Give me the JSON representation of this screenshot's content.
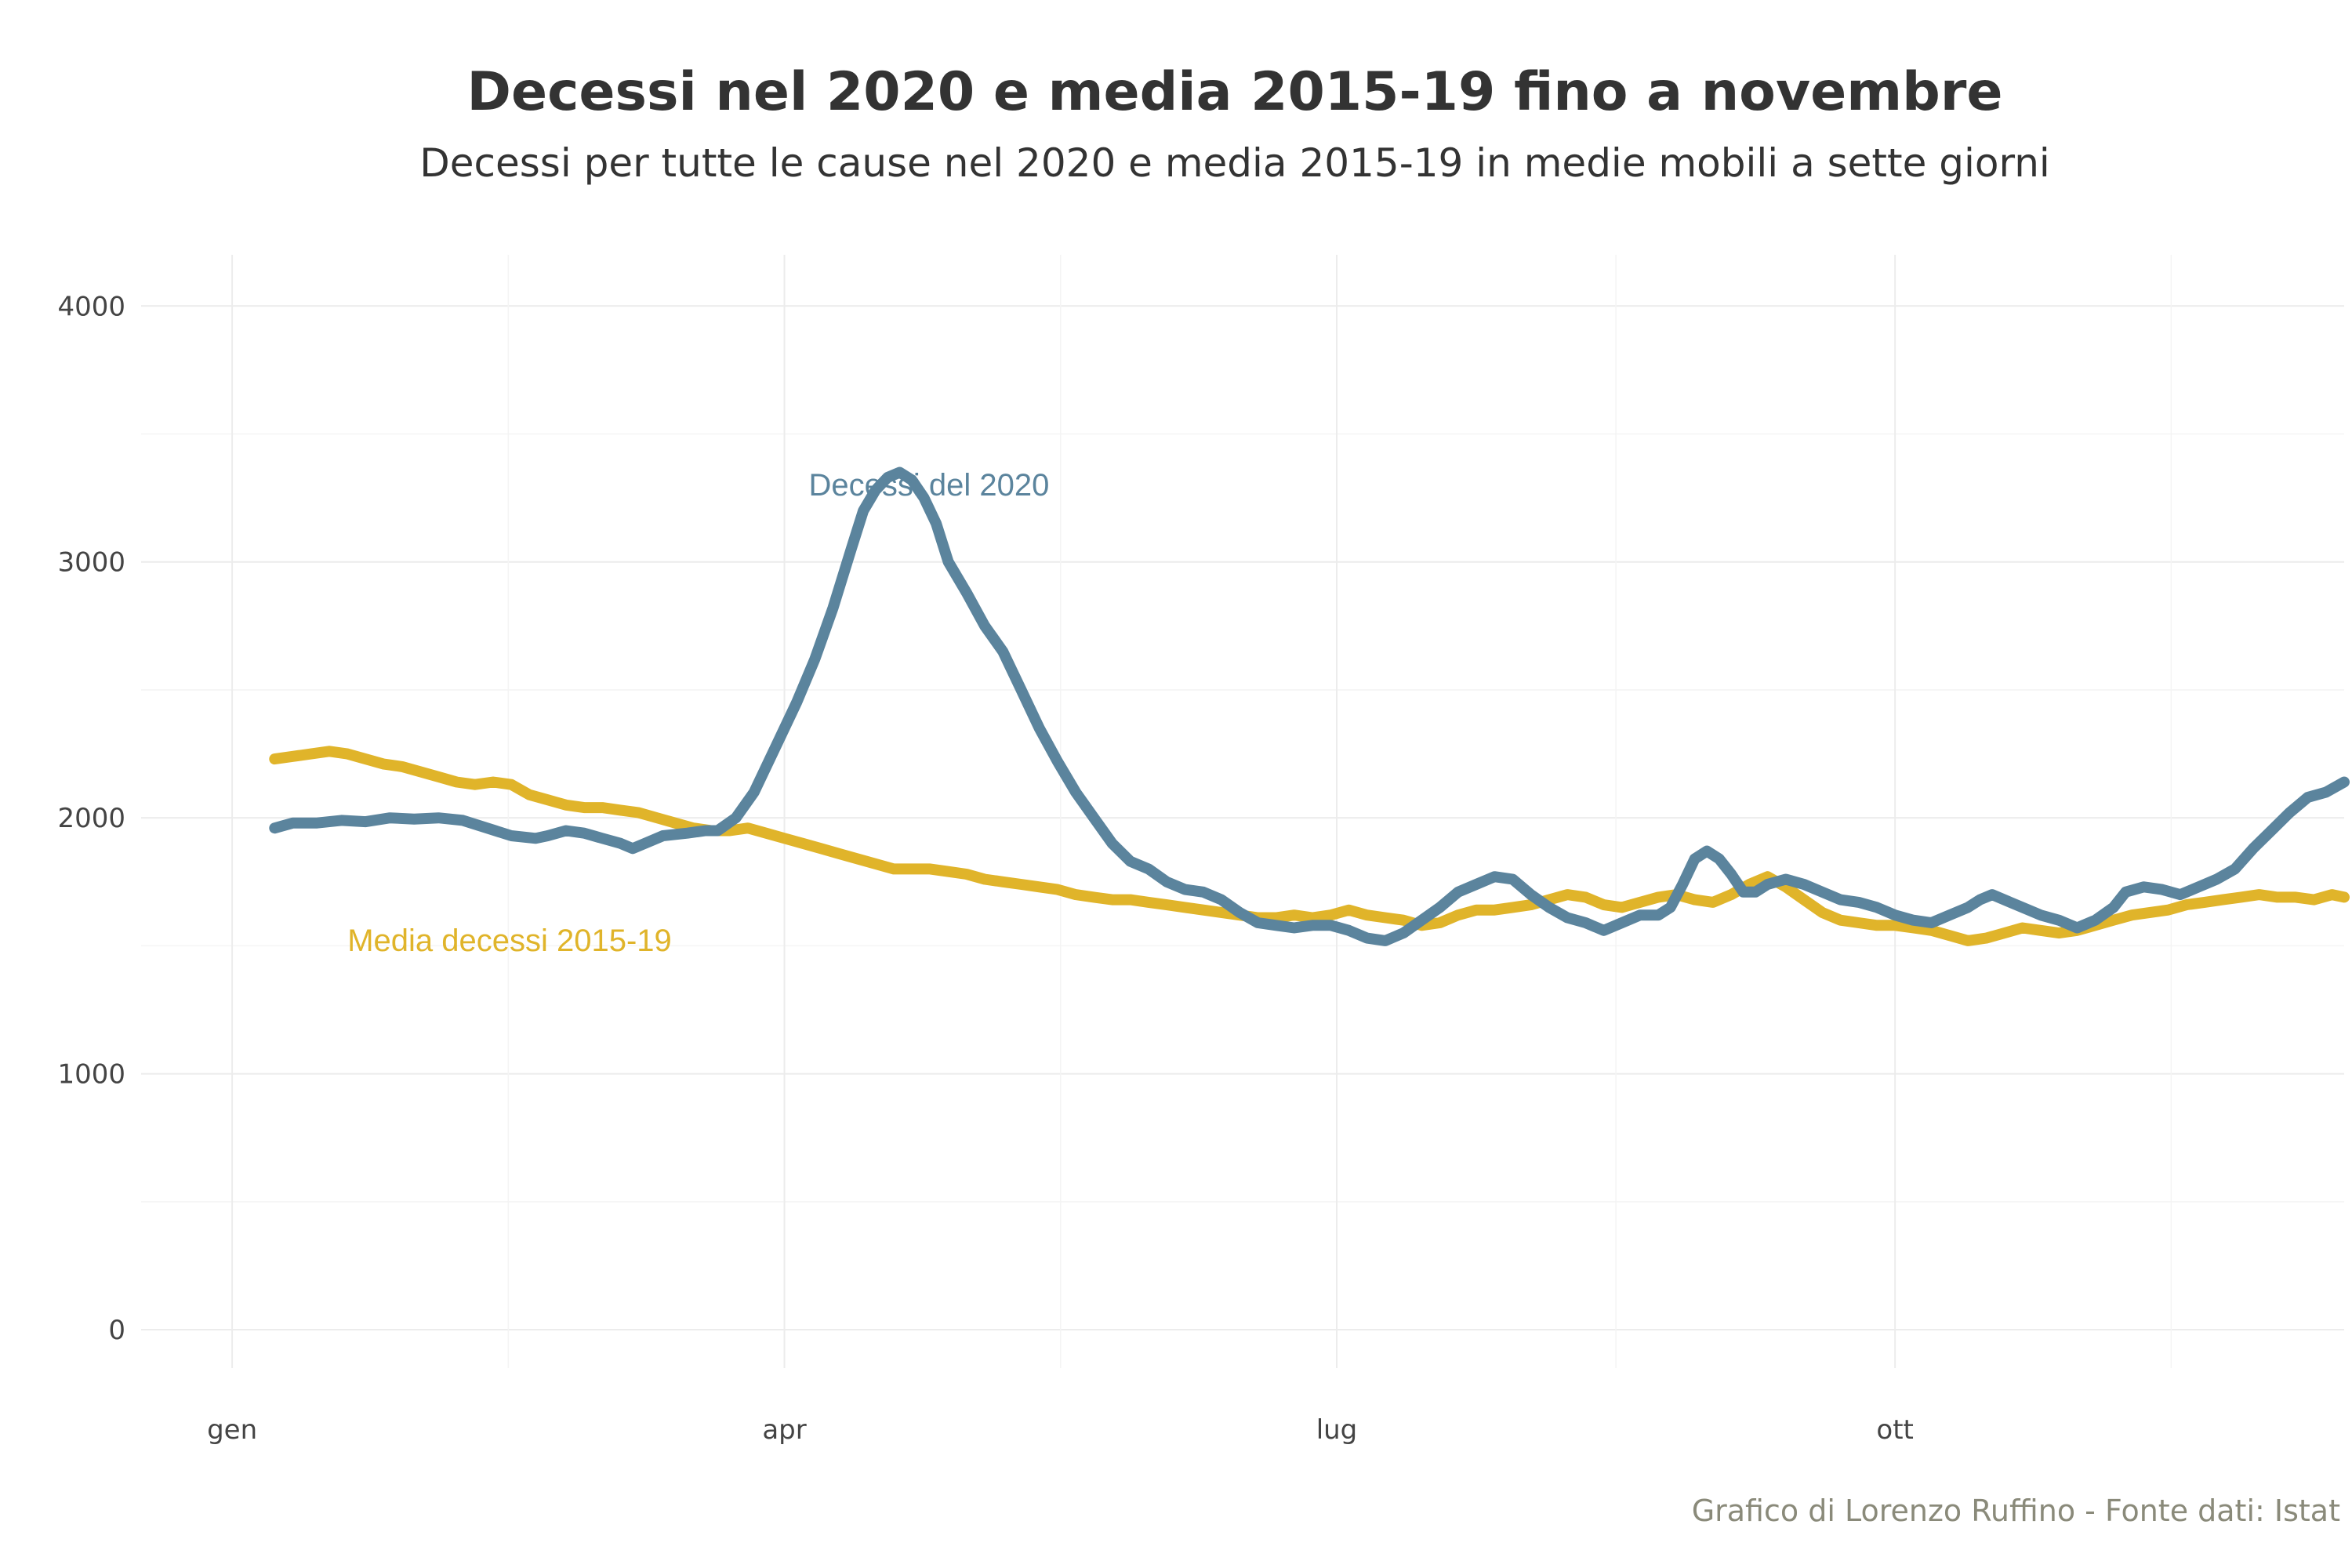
{
  "chart_data": {
    "type": "line",
    "title": "Decessi nel 2020 e media 2015-19 fino a novembre",
    "subtitle": "Decessi per tutte le cause nel 2020 e media 2015-19 in medie mobili a sette giorni",
    "caption": "Grafico di Lorenzo Ruffino - Fonte dati: Istat",
    "xlabel": "",
    "ylabel": "",
    "ylim": [
      -150,
      4200
    ],
    "xlim_days": [
      -15,
      348
    ],
    "grid": true,
    "x_ticks": [
      {
        "label": "gen",
        "day": 0
      },
      {
        "label": "apr",
        "day": 91
      },
      {
        "label": "lug",
        "day": 182
      },
      {
        "label": "ott",
        "day": 274
      }
    ],
    "y_ticks": [
      0,
      1000,
      2000,
      3000,
      4000
    ],
    "colors": {
      "decessi_2020": "#5b849d",
      "media_2015_19": "#e0b42a",
      "caption": "#8a8a7a"
    },
    "series": [
      {
        "name": "Decessi del 2020",
        "color": "#5b849d",
        "label_day": 95,
        "label_value": 3260,
        "points": [
          [
            7,
            1960
          ],
          [
            10,
            1980
          ],
          [
            14,
            1980
          ],
          [
            18,
            1990
          ],
          [
            22,
            1985
          ],
          [
            26,
            2000
          ],
          [
            30,
            1995
          ],
          [
            34,
            2000
          ],
          [
            38,
            1990
          ],
          [
            42,
            1960
          ],
          [
            46,
            1930
          ],
          [
            50,
            1920
          ],
          [
            52,
            1930
          ],
          [
            55,
            1950
          ],
          [
            58,
            1940
          ],
          [
            61,
            1920
          ],
          [
            64,
            1900
          ],
          [
            66,
            1880
          ],
          [
            68,
            1900
          ],
          [
            71,
            1930
          ],
          [
            75,
            1940
          ],
          [
            78,
            1950
          ],
          [
            80,
            1950
          ],
          [
            83,
            2000
          ],
          [
            86,
            2100
          ],
          [
            90,
            2300
          ],
          [
            93,
            2450
          ],
          [
            96,
            2620
          ],
          [
            99,
            2820
          ],
          [
            102,
            3050
          ],
          [
            104,
            3200
          ],
          [
            106,
            3280
          ],
          [
            108,
            3330
          ],
          [
            110,
            3350
          ],
          [
            112,
            3320
          ],
          [
            114,
            3250
          ],
          [
            116,
            3150
          ],
          [
            118,
            3000
          ],
          [
            121,
            2880
          ],
          [
            124,
            2750
          ],
          [
            127,
            2650
          ],
          [
            130,
            2500
          ],
          [
            133,
            2350
          ],
          [
            136,
            2220
          ],
          [
            139,
            2100
          ],
          [
            142,
            2000
          ],
          [
            145,
            1900
          ],
          [
            148,
            1830
          ],
          [
            151,
            1800
          ],
          [
            154,
            1750
          ],
          [
            157,
            1720
          ],
          [
            160,
            1710
          ],
          [
            163,
            1680
          ],
          [
            166,
            1630
          ],
          [
            169,
            1590
          ],
          [
            172,
            1580
          ],
          [
            175,
            1570
          ],
          [
            178,
            1580
          ],
          [
            181,
            1580
          ],
          [
            184,
            1560
          ],
          [
            187,
            1530
          ],
          [
            190,
            1520
          ],
          [
            193,
            1550
          ],
          [
            196,
            1600
          ],
          [
            199,
            1650
          ],
          [
            202,
            1710
          ],
          [
            205,
            1740
          ],
          [
            208,
            1770
          ],
          [
            211,
            1760
          ],
          [
            214,
            1700
          ],
          [
            217,
            1650
          ],
          [
            220,
            1610
          ],
          [
            223,
            1590
          ],
          [
            226,
            1560
          ],
          [
            229,
            1590
          ],
          [
            232,
            1620
          ],
          [
            235,
            1620
          ],
          [
            237,
            1650
          ],
          [
            239,
            1740
          ],
          [
            241,
            1840
          ],
          [
            243,
            1870
          ],
          [
            245,
            1840
          ],
          [
            247,
            1780
          ],
          [
            249,
            1710
          ],
          [
            251,
            1710
          ],
          [
            253,
            1740
          ],
          [
            256,
            1760
          ],
          [
            259,
            1740
          ],
          [
            262,
            1710
          ],
          [
            265,
            1680
          ],
          [
            268,
            1670
          ],
          [
            271,
            1650
          ],
          [
            274,
            1620
          ],
          [
            277,
            1600
          ],
          [
            280,
            1590
          ],
          [
            283,
            1620
          ],
          [
            286,
            1650
          ],
          [
            288,
            1680
          ],
          [
            290,
            1700
          ],
          [
            293,
            1670
          ],
          [
            296,
            1640
          ],
          [
            298,
            1620
          ],
          [
            301,
            1600
          ],
          [
            304,
            1570
          ],
          [
            307,
            1600
          ],
          [
            310,
            1650
          ],
          [
            312,
            1710
          ],
          [
            315,
            1730
          ],
          [
            318,
            1720
          ],
          [
            321,
            1700
          ],
          [
            324,
            1730
          ],
          [
            327,
            1760
          ],
          [
            330,
            1800
          ],
          [
            333,
            1880
          ],
          [
            336,
            1950
          ],
          [
            339,
            2020
          ],
          [
            342,
            2080
          ],
          [
            345,
            2100
          ],
          [
            348,
            2140
          ]
        ]
      },
      {
        "name": "Media decessi 2015-19",
        "color": "#e0b42a",
        "label_day": 19,
        "label_value": 1480,
        "points": [
          [
            7,
            2230
          ],
          [
            10,
            2240
          ],
          [
            13,
            2250
          ],
          [
            16,
            2260
          ],
          [
            19,
            2250
          ],
          [
            22,
            2230
          ],
          [
            25,
            2210
          ],
          [
            28,
            2200
          ],
          [
            31,
            2180
          ],
          [
            34,
            2160
          ],
          [
            37,
            2140
          ],
          [
            40,
            2130
          ],
          [
            43,
            2140
          ],
          [
            46,
            2130
          ],
          [
            49,
            2090
          ],
          [
            52,
            2070
          ],
          [
            55,
            2050
          ],
          [
            58,
            2040
          ],
          [
            61,
            2040
          ],
          [
            64,
            2030
          ],
          [
            67,
            2020
          ],
          [
            70,
            2000
          ],
          [
            73,
            1980
          ],
          [
            76,
            1960
          ],
          [
            79,
            1950
          ],
          [
            82,
            1950
          ],
          [
            85,
            1960
          ],
          [
            88,
            1940
          ],
          [
            91,
            1920
          ],
          [
            94,
            1900
          ],
          [
            97,
            1880
          ],
          [
            100,
            1860
          ],
          [
            103,
            1840
          ],
          [
            106,
            1820
          ],
          [
            109,
            1800
          ],
          [
            112,
            1800
          ],
          [
            115,
            1800
          ],
          [
            118,
            1790
          ],
          [
            121,
            1780
          ],
          [
            124,
            1760
          ],
          [
            127,
            1750
          ],
          [
            130,
            1740
          ],
          [
            133,
            1730
          ],
          [
            136,
            1720
          ],
          [
            139,
            1700
          ],
          [
            142,
            1690
          ],
          [
            145,
            1680
          ],
          [
            148,
            1680
          ],
          [
            151,
            1670
          ],
          [
            154,
            1660
          ],
          [
            157,
            1650
          ],
          [
            160,
            1640
          ],
          [
            163,
            1630
          ],
          [
            166,
            1620
          ],
          [
            169,
            1610
          ],
          [
            172,
            1610
          ],
          [
            175,
            1620
          ],
          [
            178,
            1610
          ],
          [
            181,
            1620
          ],
          [
            184,
            1640
          ],
          [
            187,
            1620
          ],
          [
            190,
            1610
          ],
          [
            193,
            1600
          ],
          [
            196,
            1580
          ],
          [
            199,
            1590
          ],
          [
            202,
            1620
          ],
          [
            205,
            1640
          ],
          [
            208,
            1640
          ],
          [
            211,
            1650
          ],
          [
            214,
            1660
          ],
          [
            217,
            1680
          ],
          [
            220,
            1700
          ],
          [
            223,
            1690
          ],
          [
            226,
            1660
          ],
          [
            229,
            1650
          ],
          [
            232,
            1670
          ],
          [
            235,
            1690
          ],
          [
            238,
            1700
          ],
          [
            241,
            1680
          ],
          [
            244,
            1670
          ],
          [
            247,
            1700
          ],
          [
            250,
            1740
          ],
          [
            253,
            1770
          ],
          [
            256,
            1730
          ],
          [
            259,
            1680
          ],
          [
            262,
            1630
          ],
          [
            265,
            1600
          ],
          [
            268,
            1590
          ],
          [
            271,
            1580
          ],
          [
            274,
            1580
          ],
          [
            277,
            1570
          ],
          [
            280,
            1560
          ],
          [
            283,
            1540
          ],
          [
            286,
            1520
          ],
          [
            289,
            1530
          ],
          [
            292,
            1550
          ],
          [
            295,
            1570
          ],
          [
            298,
            1560
          ],
          [
            301,
            1550
          ],
          [
            304,
            1560
          ],
          [
            307,
            1580
          ],
          [
            310,
            1600
          ],
          [
            313,
            1620
          ],
          [
            316,
            1630
          ],
          [
            319,
            1640
          ],
          [
            322,
            1660
          ],
          [
            325,
            1670
          ],
          [
            328,
            1680
          ],
          [
            331,
            1690
          ],
          [
            334,
            1700
          ],
          [
            337,
            1690
          ],
          [
            340,
            1690
          ],
          [
            343,
            1680
          ],
          [
            346,
            1700
          ],
          [
            348,
            1690
          ]
        ]
      }
    ]
  }
}
